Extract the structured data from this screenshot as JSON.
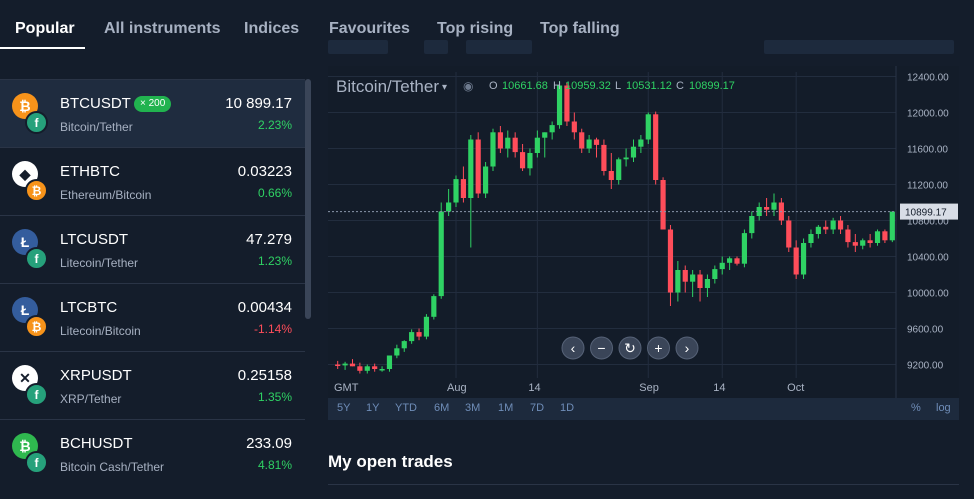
{
  "tabs": [
    {
      "label": "Popular",
      "active": true
    },
    {
      "label": "All instruments"
    },
    {
      "label": "Indices"
    },
    {
      "label": "Favourites"
    },
    {
      "label": "Top rising"
    },
    {
      "label": "Top falling"
    }
  ],
  "instruments": [
    {
      "symbol": "BTCUSDT",
      "name": "Bitcoin/Tether",
      "price": "10 899.17",
      "change": "2.23%",
      "direction": "up",
      "badge": "× 200",
      "selected": true,
      "coin_a": {
        "glyph": "₿",
        "color": "#f7931a",
        "icon": "bitcoin-icon"
      },
      "coin_b": {
        "glyph": "f",
        "color": "#26a17b",
        "icon": "tether-icon"
      }
    },
    {
      "symbol": "ETHBTC",
      "name": "Ethereum/Bitcoin",
      "price": "0.03223",
      "change": "0.66%",
      "direction": "up",
      "coin_a": {
        "glyph": "◆",
        "color": "#ffffff",
        "icon": "ethereum-icon"
      },
      "coin_b": {
        "glyph": "₿",
        "color": "#f7931a",
        "icon": "bitcoin-icon"
      }
    },
    {
      "symbol": "LTCUSDT",
      "name": "Litecoin/Tether",
      "price": "47.279",
      "change": "1.23%",
      "direction": "up",
      "coin_a": {
        "glyph": "Ł",
        "color": "#345d9d",
        "icon": "litecoin-icon"
      },
      "coin_b": {
        "glyph": "f",
        "color": "#26a17b",
        "icon": "tether-icon"
      }
    },
    {
      "symbol": "LTCBTC",
      "name": "Litecoin/Bitcoin",
      "price": "0.00434",
      "change": "-1.14%",
      "direction": "down",
      "coin_a": {
        "glyph": "Ł",
        "color": "#345d9d",
        "icon": "litecoin-icon"
      },
      "coin_b": {
        "glyph": "₿",
        "color": "#f7931a",
        "icon": "bitcoin-icon"
      }
    },
    {
      "symbol": "XRPUSDT",
      "name": "XRP/Tether",
      "price": "0.25158",
      "change": "1.35%",
      "direction": "up",
      "coin_a": {
        "glyph": "✕",
        "color": "#ffffff",
        "icon": "xrp-icon"
      },
      "coin_b": {
        "glyph": "f",
        "color": "#26a17b",
        "icon": "tether-icon"
      }
    },
    {
      "symbol": "BCHUSDT",
      "name": "Bitcoin Cash/Tether",
      "price": "233.09",
      "change": "4.81%",
      "direction": "up",
      "coin_a": {
        "glyph": "₿",
        "color": "#2fb84f",
        "icon": "bitcoin-cash-icon"
      },
      "coin_b": {
        "glyph": "f",
        "color": "#26a17b",
        "icon": "tether-icon"
      }
    }
  ],
  "chart": {
    "pair": "Bitcoin/Tether",
    "ohlc": {
      "o_label": "O",
      "o": "10661.68",
      "h_label": "H",
      "h": "10959.32",
      "l_label": "L",
      "l": "10531.12",
      "c_label": "C",
      "c": "10899.17"
    },
    "timezone": "GMT",
    "x_ticks": [
      "Aug",
      "14",
      "Sep",
      "14",
      "Oct"
    ],
    "last_price_label": "10899.17",
    "timeframes": [
      "5Y",
      "1Y",
      "YTD",
      "6M",
      "3M",
      "1M",
      "7D",
      "1D"
    ],
    "scale_options": [
      "%",
      "log"
    ],
    "colors": {
      "up": "#2fd264",
      "down": "#ff4d5a",
      "background": "#141d2b"
    }
  },
  "chart_data": {
    "type": "candlestick",
    "title": "Bitcoin/Tether",
    "y_ticks": [
      9200,
      9600,
      10000,
      10400,
      10800,
      11200,
      11600,
      12000,
      12400
    ],
    "y_tick_labels": [
      "9200.00",
      "9600.00",
      "10000.00",
      "10400.00",
      "10800.00",
      "11200.00",
      "11600.00",
      "12000.00",
      "12400.00"
    ],
    "ylim": [
      9050,
      12450
    ],
    "grid": true,
    "candles": [
      {
        "o": 9200,
        "h": 9240,
        "l": 9150,
        "c": 9190
      },
      {
        "o": 9190,
        "h": 9230,
        "l": 9140,
        "c": 9210
      },
      {
        "o": 9210,
        "h": 9260,
        "l": 9180,
        "c": 9180
      },
      {
        "o": 9180,
        "h": 9220,
        "l": 9100,
        "c": 9130
      },
      {
        "o": 9130,
        "h": 9200,
        "l": 9100,
        "c": 9180
      },
      {
        "o": 9180,
        "h": 9210,
        "l": 9120,
        "c": 9150
      },
      {
        "o": 9150,
        "h": 9180,
        "l": 9120,
        "c": 9150
      },
      {
        "o": 9150,
        "h": 9300,
        "l": 9120,
        "c": 9300
      },
      {
        "o": 9300,
        "h": 9420,
        "l": 9270,
        "c": 9380
      },
      {
        "o": 9380,
        "h": 9470,
        "l": 9340,
        "c": 9460
      },
      {
        "o": 9460,
        "h": 9590,
        "l": 9430,
        "c": 9560
      },
      {
        "o": 9560,
        "h": 9600,
        "l": 9470,
        "c": 9510
      },
      {
        "o": 9510,
        "h": 9760,
        "l": 9480,
        "c": 9730
      },
      {
        "o": 9730,
        "h": 9980,
        "l": 9700,
        "c": 9960
      },
      {
        "o": 9960,
        "h": 11000,
        "l": 9930,
        "c": 10900
      },
      {
        "o": 10900,
        "h": 11150,
        "l": 10850,
        "c": 11000
      },
      {
        "o": 11000,
        "h": 11300,
        "l": 10950,
        "c": 11260
      },
      {
        "o": 11260,
        "h": 11400,
        "l": 11000,
        "c": 11050
      },
      {
        "o": 11050,
        "h": 11750,
        "l": 10500,
        "c": 11700
      },
      {
        "o": 11700,
        "h": 11780,
        "l": 11050,
        "c": 11100
      },
      {
        "o": 11100,
        "h": 11450,
        "l": 11050,
        "c": 11400
      },
      {
        "o": 11400,
        "h": 11820,
        "l": 11350,
        "c": 11780
      },
      {
        "o": 11780,
        "h": 11850,
        "l": 11550,
        "c": 11600
      },
      {
        "o": 11600,
        "h": 11800,
        "l": 11500,
        "c": 11720
      },
      {
        "o": 11720,
        "h": 11780,
        "l": 11500,
        "c": 11560
      },
      {
        "o": 11560,
        "h": 11650,
        "l": 11350,
        "c": 11380
      },
      {
        "o": 11380,
        "h": 11600,
        "l": 11300,
        "c": 11550
      },
      {
        "o": 11550,
        "h": 11800,
        "l": 11500,
        "c": 11720
      },
      {
        "o": 11720,
        "h": 11780,
        "l": 11500,
        "c": 11780
      },
      {
        "o": 11780,
        "h": 11900,
        "l": 11700,
        "c": 11860
      },
      {
        "o": 11860,
        "h": 12350,
        "l": 11820,
        "c": 12300
      },
      {
        "o": 12300,
        "h": 12330,
        "l": 11850,
        "c": 11900
      },
      {
        "o": 11900,
        "h": 12000,
        "l": 11700,
        "c": 11780
      },
      {
        "o": 11780,
        "h": 11820,
        "l": 11550,
        "c": 11600
      },
      {
        "o": 11600,
        "h": 11750,
        "l": 11550,
        "c": 11700
      },
      {
        "o": 11700,
        "h": 11720,
        "l": 11500,
        "c": 11640
      },
      {
        "o": 11640,
        "h": 11700,
        "l": 11300,
        "c": 11350
      },
      {
        "o": 11350,
        "h": 11550,
        "l": 11150,
        "c": 11250
      },
      {
        "o": 11250,
        "h": 11500,
        "l": 11200,
        "c": 11480
      },
      {
        "o": 11480,
        "h": 11600,
        "l": 11400,
        "c": 11500
      },
      {
        "o": 11500,
        "h": 11700,
        "l": 11450,
        "c": 11620
      },
      {
        "o": 11620,
        "h": 11750,
        "l": 11550,
        "c": 11700
      },
      {
        "o": 11700,
        "h": 12000,
        "l": 11650,
        "c": 11980
      },
      {
        "o": 11980,
        "h": 12010,
        "l": 11200,
        "c": 11250
      },
      {
        "o": 11250,
        "h": 11280,
        "l": 10700,
        "c": 10700
      },
      {
        "o": 10700,
        "h": 10750,
        "l": 9850,
        "c": 10000
      },
      {
        "o": 10000,
        "h": 10350,
        "l": 9900,
        "c": 10250
      },
      {
        "o": 10250,
        "h": 10300,
        "l": 10000,
        "c": 10120
      },
      {
        "o": 10120,
        "h": 10250,
        "l": 9950,
        "c": 10200
      },
      {
        "o": 10200,
        "h": 10250,
        "l": 9900,
        "c": 10050
      },
      {
        "o": 10050,
        "h": 10200,
        "l": 9950,
        "c": 10150
      },
      {
        "o": 10150,
        "h": 10300,
        "l": 10100,
        "c": 10260
      },
      {
        "o": 10260,
        "h": 10400,
        "l": 10200,
        "c": 10330
      },
      {
        "o": 10330,
        "h": 10400,
        "l": 10250,
        "c": 10380
      },
      {
        "o": 10380,
        "h": 10400,
        "l": 10300,
        "c": 10320
      },
      {
        "o": 10320,
        "h": 10700,
        "l": 10280,
        "c": 10660
      },
      {
        "o": 10660,
        "h": 10900,
        "l": 10600,
        "c": 10850
      },
      {
        "o": 10850,
        "h": 11000,
        "l": 10800,
        "c": 10950
      },
      {
        "o": 10950,
        "h": 11050,
        "l": 10850,
        "c": 10920
      },
      {
        "o": 10920,
        "h": 11100,
        "l": 10850,
        "c": 11000
      },
      {
        "o": 11000,
        "h": 11050,
        "l": 10750,
        "c": 10800
      },
      {
        "o": 10800,
        "h": 10850,
        "l": 10450,
        "c": 10500
      },
      {
        "o": 10500,
        "h": 10580,
        "l": 10150,
        "c": 10200
      },
      {
        "o": 10200,
        "h": 10600,
        "l": 10150,
        "c": 10550
      },
      {
        "o": 10550,
        "h": 10700,
        "l": 10500,
        "c": 10650
      },
      {
        "o": 10650,
        "h": 10750,
        "l": 10600,
        "c": 10730
      },
      {
        "o": 10730,
        "h": 10800,
        "l": 10650,
        "c": 10700
      },
      {
        "o": 10700,
        "h": 10830,
        "l": 10650,
        "c": 10800
      },
      {
        "o": 10800,
        "h": 10850,
        "l": 10650,
        "c": 10700
      },
      {
        "o": 10700,
        "h": 10750,
        "l": 10500,
        "c": 10560
      },
      {
        "o": 10560,
        "h": 10650,
        "l": 10450,
        "c": 10520
      },
      {
        "o": 10520,
        "h": 10600,
        "l": 10480,
        "c": 10580
      },
      {
        "o": 10580,
        "h": 10650,
        "l": 10500,
        "c": 10550
      },
      {
        "o": 10550,
        "h": 10700,
        "l": 10520,
        "c": 10680
      },
      {
        "o": 10680,
        "h": 10700,
        "l": 10550,
        "c": 10580
      },
      {
        "o": 10580,
        "h": 10900,
        "l": 10560,
        "c": 10899
      }
    ]
  },
  "nav_controls": [
    {
      "glyph": "‹",
      "icon": "chevron-left-icon"
    },
    {
      "glyph": "−",
      "icon": "zoom-out-icon"
    },
    {
      "glyph": "↻",
      "icon": "reset-icon"
    },
    {
      "glyph": "+",
      "icon": "zoom-in-icon"
    },
    {
      "glyph": "›",
      "icon": "chevron-right-icon"
    }
  ],
  "section_title": "My open trades"
}
